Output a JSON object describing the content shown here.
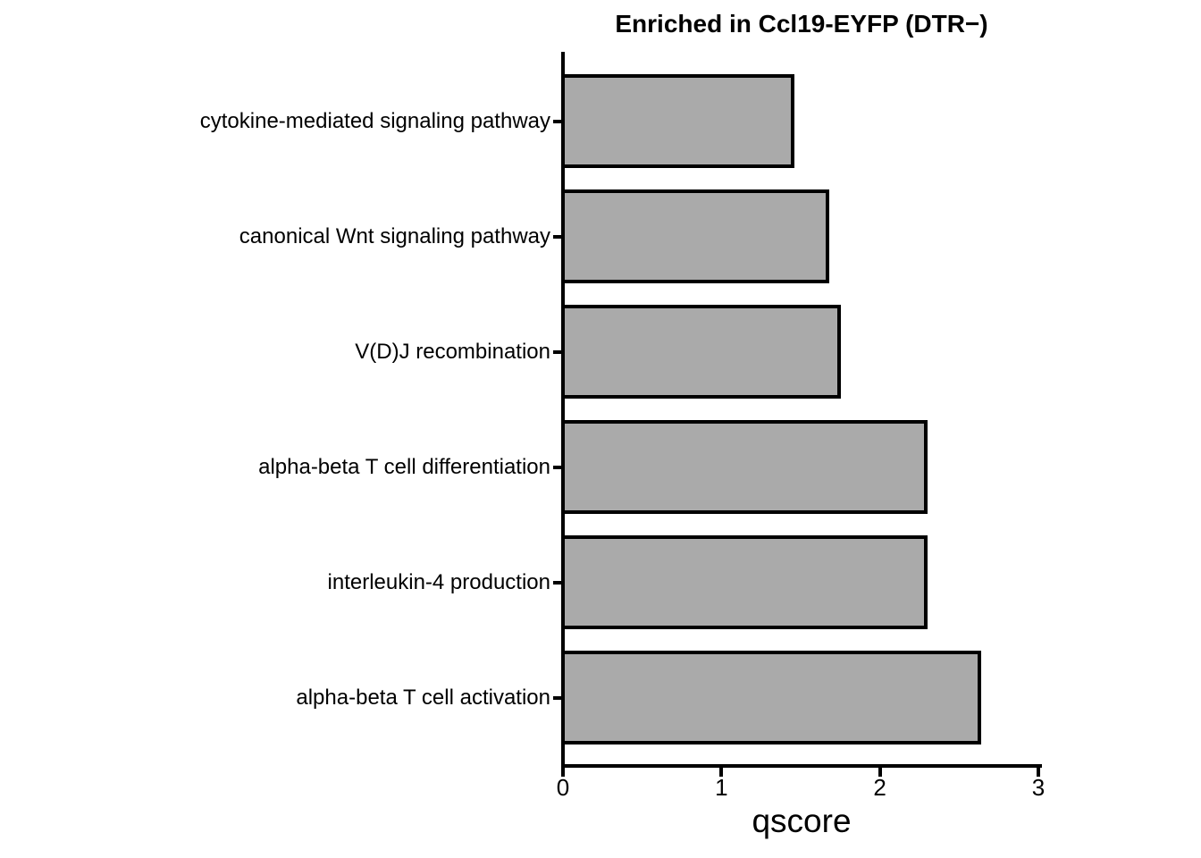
{
  "chart_data": {
    "type": "bar",
    "orientation": "horizontal",
    "title": "Enriched in Ccl19-EYFP (DTR−)",
    "categories": [
      "cytokine-mediated signaling pathway",
      "canonical Wnt signaling pathway",
      "V(D)J recombination",
      "alpha-beta T cell differentiation",
      "interleukin-4 production",
      "alpha-beta T cell activation"
    ],
    "values": [
      1.45,
      1.67,
      1.74,
      2.29,
      2.29,
      2.63
    ],
    "xlabel": "qscore",
    "xlim": [
      0,
      3
    ],
    "xticks": [
      0,
      1,
      2,
      3
    ],
    "xtick_labels": [
      "0",
      "1",
      "2",
      "3"
    ],
    "grid": false,
    "legend_position": "none",
    "colors": {
      "bar_fill": "#aaaaaa",
      "bar_border": "#000000",
      "axis": "#000000",
      "text": "#000000",
      "background": "#ffffff"
    }
  }
}
